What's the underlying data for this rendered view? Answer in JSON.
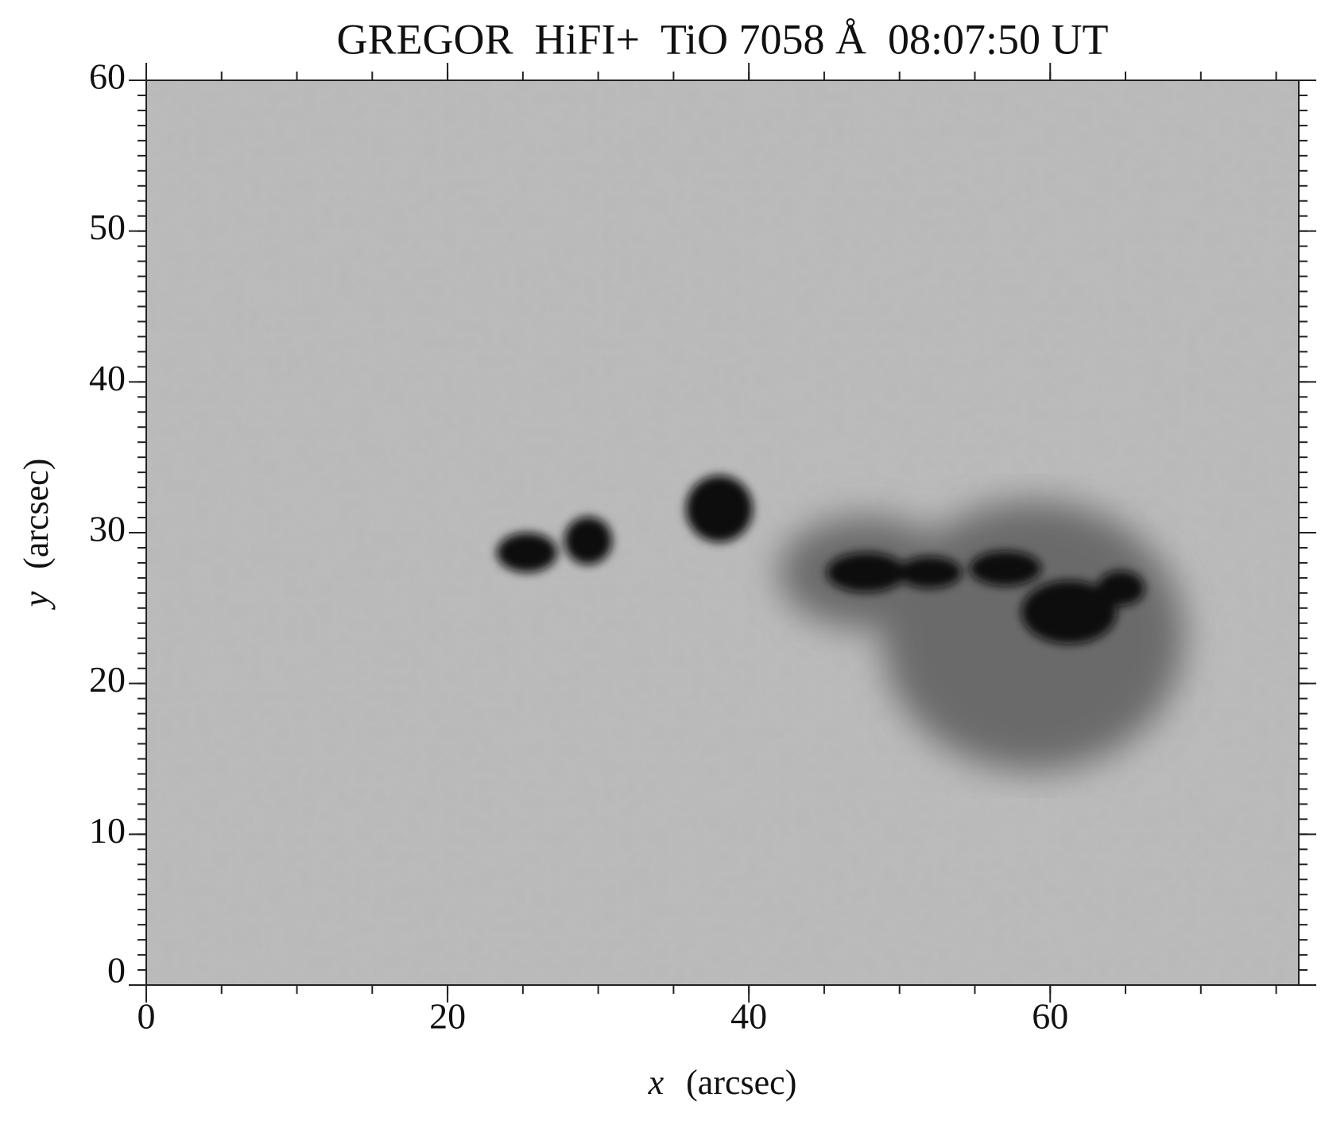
{
  "chart_data": {
    "type": "image",
    "title": "GREGOR  HiFI+  TiO 7058 Å  08:07:50 UT",
    "xlabel_var": "x",
    "xlabel_unit": "(arcsec)",
    "ylabel_var": "y",
    "ylabel_unit": "(arcsec)",
    "xlim": [
      0,
      76.5
    ],
    "ylim": [
      0,
      60
    ],
    "xticks": [
      0,
      20,
      40,
      60
    ],
    "yticks": [
      0,
      10,
      20,
      30,
      40,
      50,
      60
    ],
    "xminor": 5,
    "yminor": 1
  }
}
